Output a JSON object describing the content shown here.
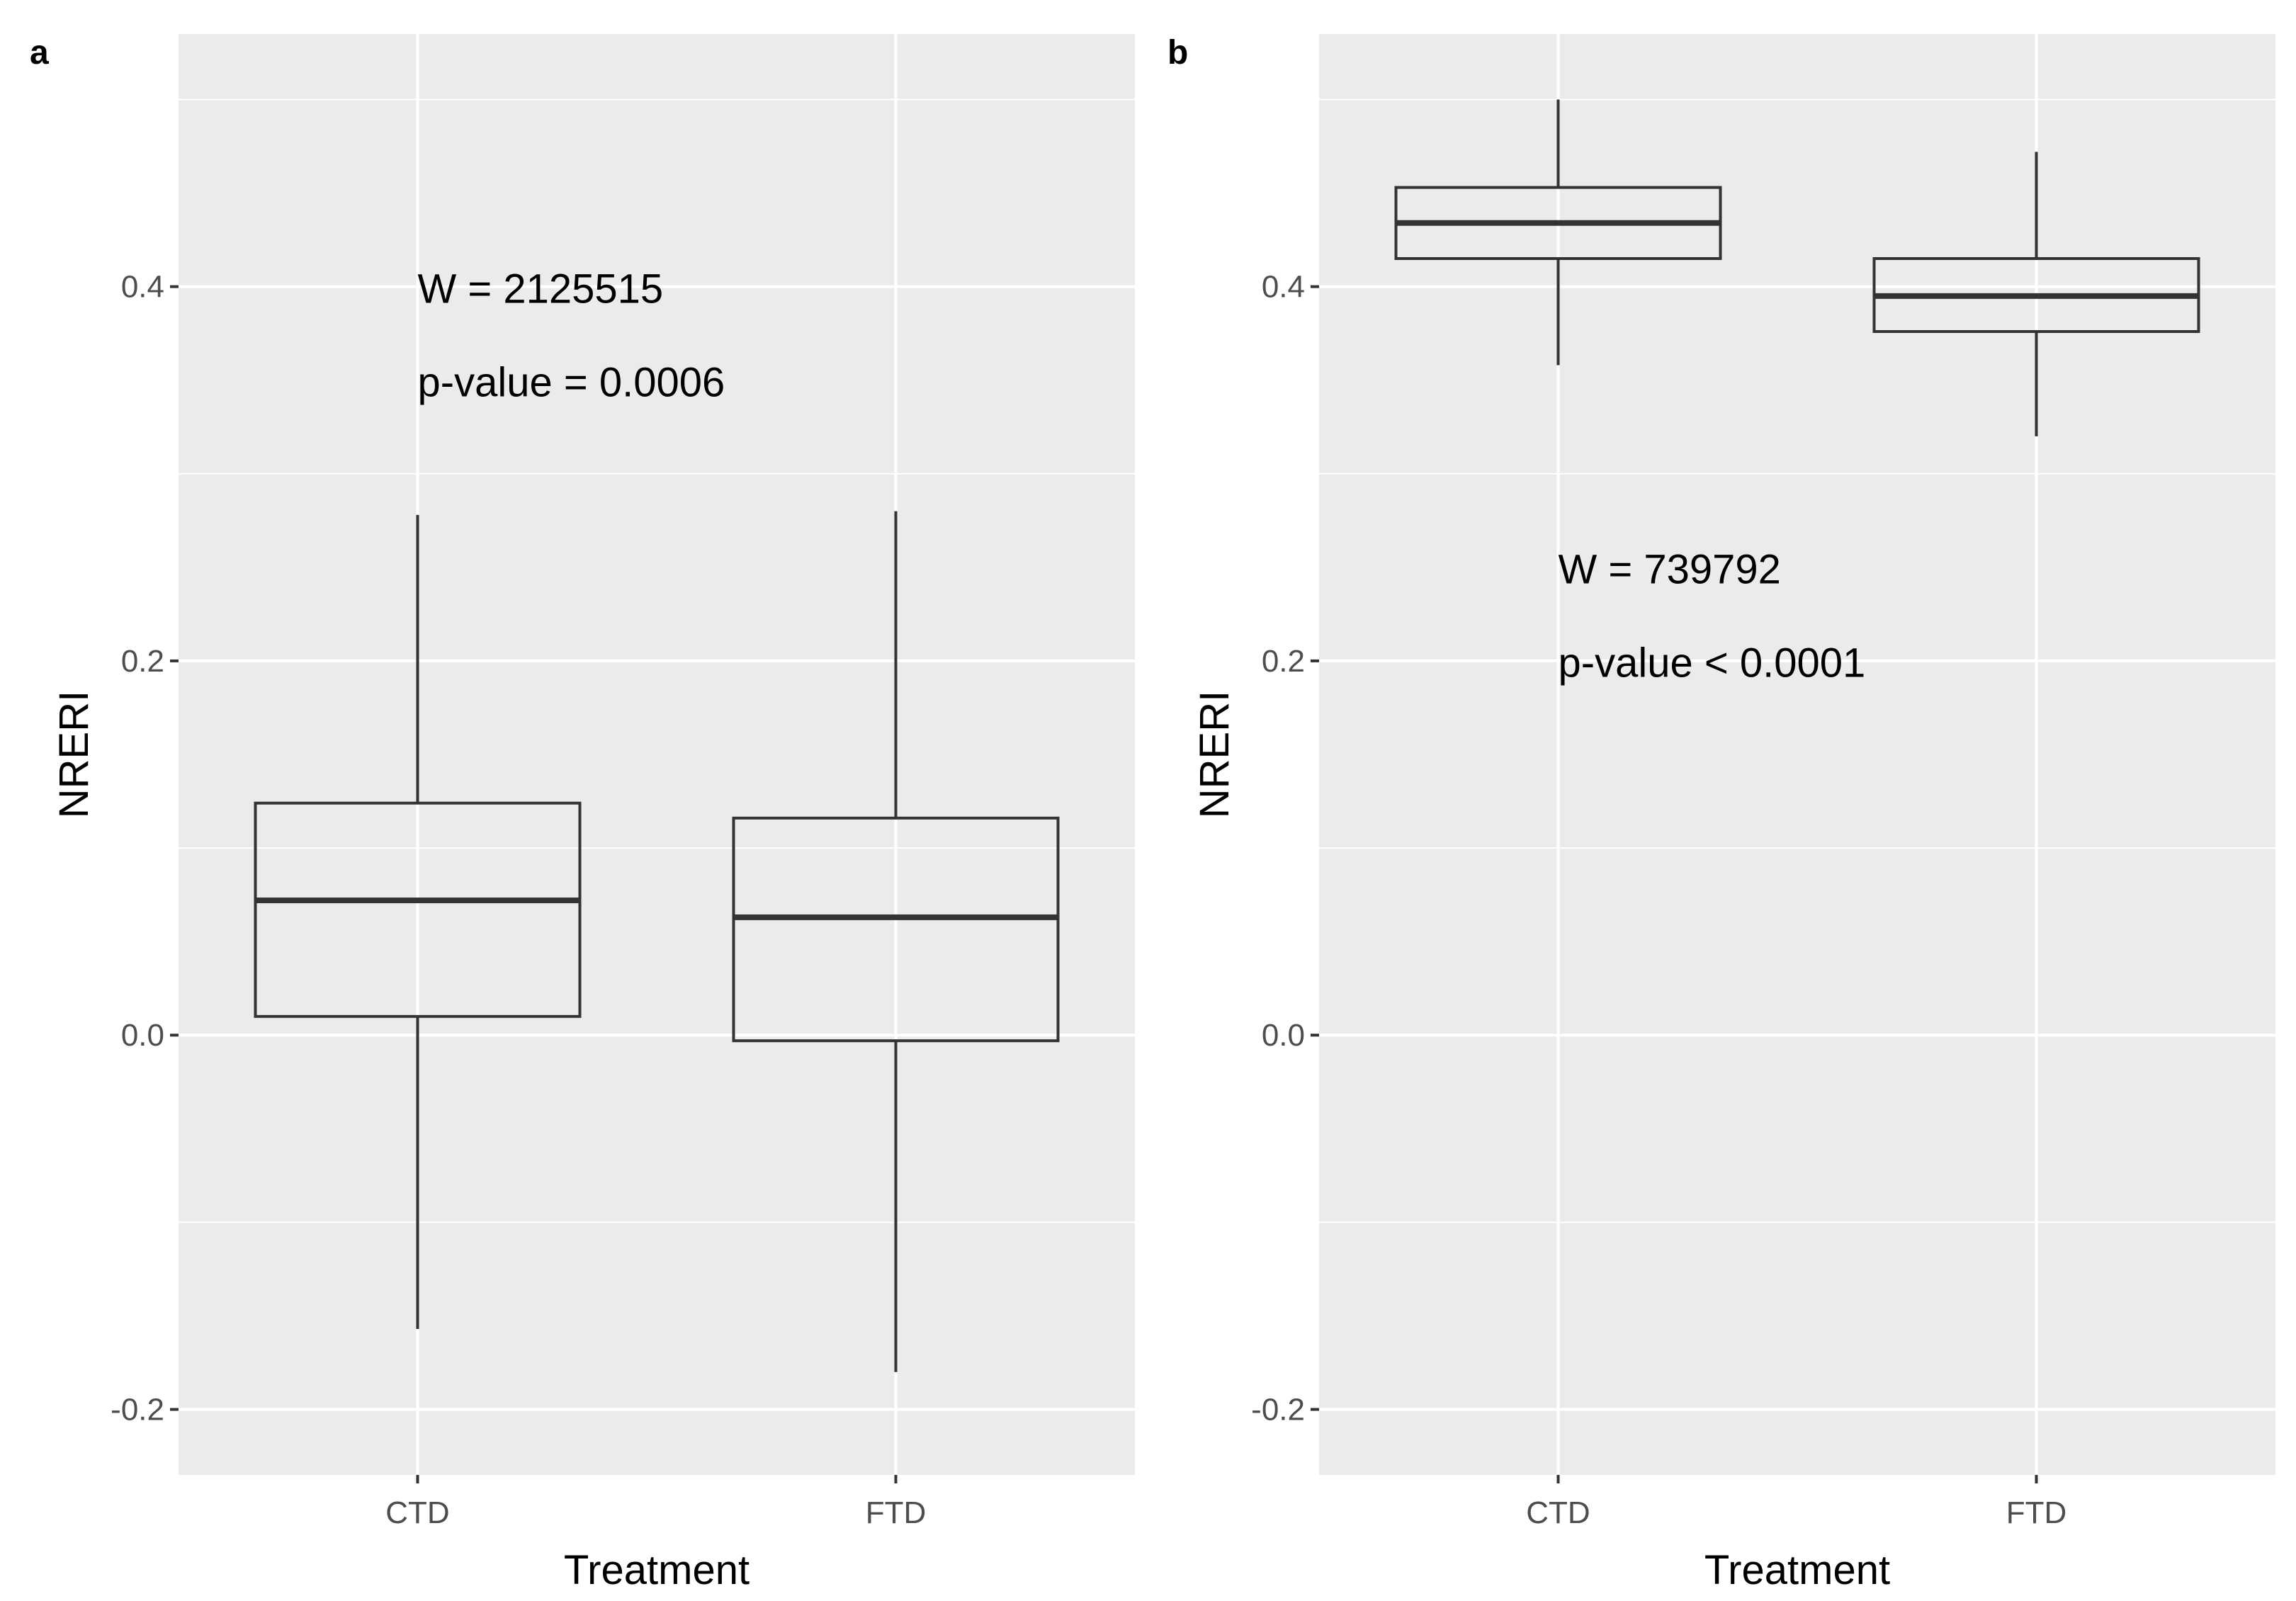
{
  "chart_data": [
    {
      "type": "box",
      "panel_label": "a",
      "xlabel": "Treatment",
      "ylabel": "NRERI",
      "categories": [
        "CTD",
        "FTD"
      ],
      "ylim": [
        -0.235,
        0.535
      ],
      "yticks": [
        -0.2,
        0.0,
        0.2,
        0.4
      ],
      "ytick_labels": [
        "-0.2",
        "0.0",
        "0.2",
        "0.4"
      ],
      "grid": true,
      "boxes": [
        {
          "category": "CTD",
          "min": -0.157,
          "q1": 0.01,
          "median": 0.072,
          "q3": 0.124,
          "max": 0.278
        },
        {
          "category": "FTD",
          "min": -0.18,
          "q1": -0.003,
          "median": 0.063,
          "q3": 0.116,
          "max": 0.28
        }
      ],
      "annotations": [
        {
          "text": "W = 2125515",
          "x": "CTD",
          "y": 0.399
        },
        {
          "text": "p-value = 0.0006",
          "x": "CTD",
          "y": 0.349
        }
      ]
    },
    {
      "type": "box",
      "panel_label": "b",
      "xlabel": "Treatment",
      "ylabel": "NRERI",
      "categories": [
        "CTD",
        "FTD"
      ],
      "ylim": [
        -0.235,
        0.535
      ],
      "yticks": [
        -0.2,
        0.0,
        0.2,
        0.4
      ],
      "ytick_labels": [
        "-0.2",
        "0.0",
        "0.2",
        "0.4"
      ],
      "grid": true,
      "boxes": [
        {
          "category": "CTD",
          "min": 0.358,
          "q1": 0.415,
          "median": 0.434,
          "q3": 0.453,
          "max": 0.5
        },
        {
          "category": "FTD",
          "min": 0.32,
          "q1": 0.376,
          "median": 0.395,
          "q3": 0.415,
          "max": 0.472
        }
      ],
      "annotations": [
        {
          "text": "W = 739792",
          "x": "CTD",
          "y": 0.249
        },
        {
          "text": "p-value < 0.0001",
          "x": "CTD",
          "y": 0.199
        }
      ]
    }
  ]
}
